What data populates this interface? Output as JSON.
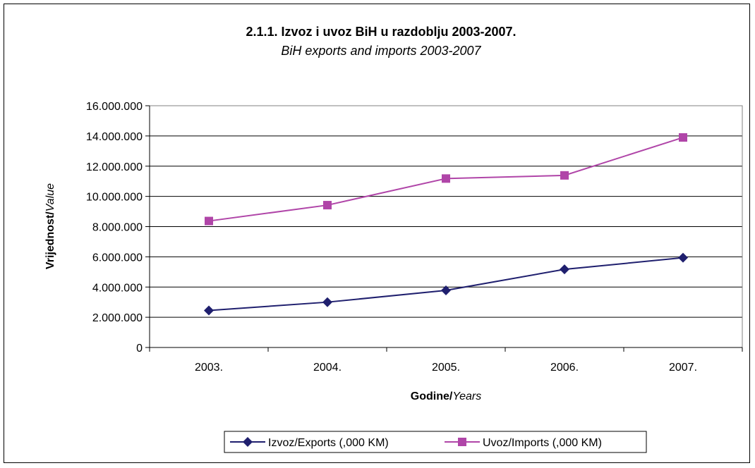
{
  "chart_data": {
    "type": "line",
    "title": "2.1.1. Izvoz i uvoz BiH u razdoblju 2003-2007.",
    "subtitle": "BiH exports and imports 2003-2007",
    "xlabel_bold": "Godine/",
    "xlabel_italic": "Years",
    "ylabel_bold": "Vrijednost/",
    "ylabel_italic": "Value",
    "categories": [
      "2003.",
      "2004.",
      "2005.",
      "2006.",
      "2007."
    ],
    "ylim": [
      0,
      16000000
    ],
    "yticks": [
      0,
      2000000,
      4000000,
      6000000,
      8000000,
      10000000,
      12000000,
      14000000,
      16000000
    ],
    "ytick_labels": [
      "0",
      "2.000.000",
      "4.000.000",
      "6.000.000",
      "8.000.000",
      "10.000.000",
      "12.000.000",
      "14.000.000",
      "16.000.000"
    ],
    "grid": true,
    "legend_position": "bottom",
    "series": [
      {
        "name": "Izvoz/Exports (,000 KM)",
        "values": [
          2450000,
          3000000,
          3780000,
          5170000,
          5940000
        ],
        "color": "#1f1f6e",
        "marker": "diamond"
      },
      {
        "name": "Uvoz/Imports (,000 KM)",
        "values": [
          8370000,
          9420000,
          11180000,
          11390000,
          13900000
        ],
        "color": "#b045a8",
        "marker": "square"
      }
    ]
  }
}
